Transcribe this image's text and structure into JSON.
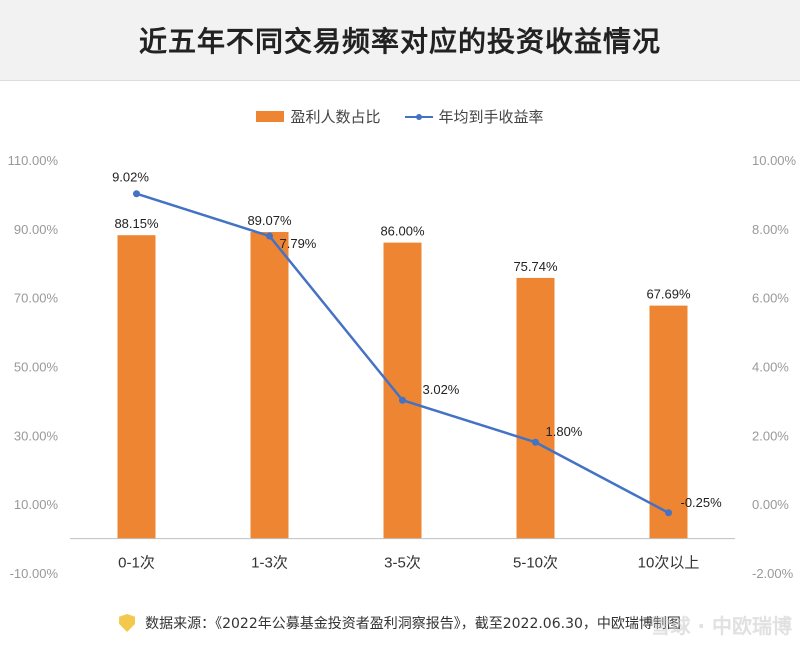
{
  "chart_data": {
    "type": "bar",
    "title": "近五年不同交易频率对应的投资收益情况",
    "categories": [
      "0-1次",
      "1-3次",
      "3-5次",
      "5-10次",
      "10次以上"
    ],
    "series": [
      {
        "name": "盈利人数占比",
        "type": "bar",
        "axis": "left",
        "color": "#ED8532",
        "values": [
          88.15,
          89.07,
          86.0,
          75.74,
          67.69
        ],
        "labels": [
          "88.15%",
          "89.07%",
          "86.00%",
          "75.74%",
          "67.69%"
        ]
      },
      {
        "name": "年均到手收益率",
        "type": "line",
        "axis": "right",
        "color": "#4472C4",
        "values": [
          9.02,
          7.79,
          3.02,
          1.8,
          -0.25
        ],
        "labels": [
          "9.02%",
          "7.79%",
          "3.02%",
          "1.80%",
          "-0.25%"
        ]
      }
    ],
    "y_left": {
      "range": [
        -10,
        110
      ],
      "ticks": [
        -10,
        10,
        30,
        50,
        70,
        90,
        110
      ],
      "tick_labels": [
        "-10.00%",
        "10.00%",
        "30.00%",
        "50.00%",
        "70.00%",
        "90.00%",
        "110.00%"
      ]
    },
    "y_right": {
      "range": [
        -2,
        10
      ],
      "ticks": [
        -2,
        0,
        2,
        4,
        6,
        8,
        10
      ],
      "tick_labels": [
        "-2.00%",
        "0.00%",
        "2.00%",
        "4.00%",
        "6.00%",
        "8.00%",
        "10.00%"
      ]
    },
    "legend_position": "top",
    "grid": false
  },
  "footer": {
    "source_text": "数据来源：《2022年公募基金投资者盈利洞察报告》，截至2022.06.30，中欧瑞博制图",
    "watermark": "雪球 · 中欧瑞博"
  },
  "colors": {
    "header_bg": "#f2f2f2",
    "bar": "#ED8532",
    "line": "#4472C4",
    "axis": "#bfbfbf",
    "tick_text": "#999999"
  }
}
